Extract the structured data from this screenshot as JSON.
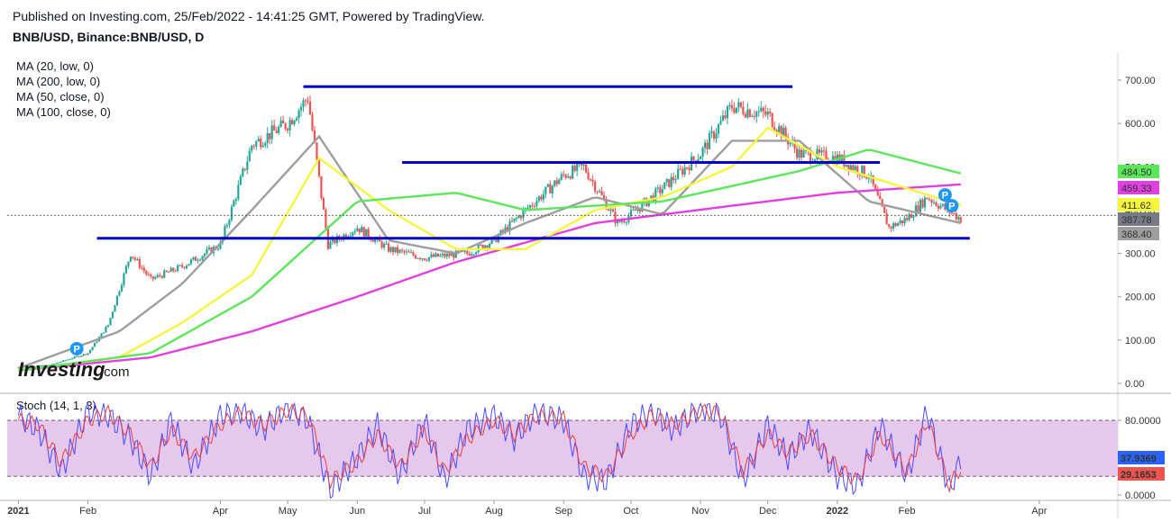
{
  "header": {
    "published": "Published on Investing.com, 25/Feb/2022 - 14:41:25 GMT, Powered by TradingView.",
    "symbol": "BNB/USD, Binance:BNB/USD, D"
  },
  "indicators": {
    "ma": [
      "MA (20, low, 0)",
      "MA (200, low, 0)",
      "MA (50, close, 0)",
      "MA (100, close, 0)"
    ],
    "stoch_label": "Stoch (14, 1, 3)"
  },
  "logo": {
    "brand": "Investing",
    "suffix": ".com"
  },
  "colors": {
    "ma20": "#9e9e9e",
    "ma200": "#e040e0",
    "ma50": "#f5f53d",
    "ma100": "#5ce65c",
    "level": "#0000cc",
    "up": "#26a69a",
    "down": "#ef5350",
    "stoch_k": "#4a4aff",
    "stoch_d": "#ef3b3b",
    "stoch_band": "#e1bee7",
    "last_price": "#787b86",
    "stoch_k_badge": "#2962ff",
    "stoch_d_badge": "#ef5350",
    "p_marker": "#2196f3"
  },
  "chart_data": [
    {
      "type": "candlestick",
      "title": "BNB/USD, Binance:BNB/USD, D",
      "ylim": [
        0,
        750
      ],
      "y_ticks": [
        "0.00",
        "100.00",
        "200.00",
        "300.00",
        "400.00",
        "500.00",
        "600.00",
        "700.00"
      ],
      "x_ticks": [
        "2021",
        "Feb",
        "Apr",
        "May",
        "Jun",
        "Jul",
        "Aug",
        "Sep",
        "Oct",
        "Nov",
        "Dec",
        "2022",
        "Feb",
        "Apr"
      ],
      "x_tick_bold": [
        "2021",
        "2022"
      ],
      "price_series_approx": {
        "dates": [
          "2021-01-01",
          "2021-01-15",
          "2021-02-01",
          "2021-02-10",
          "2021-02-20",
          "2021-03-01",
          "2021-03-15",
          "2021-04-01",
          "2021-04-15",
          "2021-05-01",
          "2021-05-10",
          "2021-05-19",
          "2021-06-01",
          "2021-06-15",
          "2021-07-01",
          "2021-07-20",
          "2021-08-01",
          "2021-08-15",
          "2021-09-01",
          "2021-09-10",
          "2021-09-25",
          "2021-10-01",
          "2021-10-15",
          "2021-11-01",
          "2021-11-15",
          "2021-12-01",
          "2021-12-15",
          "2022-01-01",
          "2022-01-15",
          "2022-01-24",
          "2022-02-01",
          "2022-02-10",
          "2022-02-25"
        ],
        "close": [
          38,
          42,
          70,
          135,
          300,
          240,
          270,
          320,
          550,
          600,
          660,
          320,
          360,
          310,
          290,
          300,
          330,
          400,
          480,
          500,
          370,
          390,
          450,
          530,
          640,
          620,
          530,
          520,
          480,
          360,
          380,
          430,
          380
        ]
      },
      "moving_averages": [
        {
          "name": "MA (20, low, 0)",
          "dates": [
            "2021-01-01",
            "2021-02-15",
            "2021-03-15",
            "2021-04-15",
            "2021-05-15",
            "2021-06-15",
            "2021-07-15",
            "2021-08-15",
            "2021-09-15",
            "2021-10-15",
            "2021-11-15",
            "2021-12-15",
            "2022-01-15",
            "2022-02-25"
          ],
          "values": [
            35,
            120,
            230,
            400,
            570,
            330,
            300,
            370,
            430,
            390,
            560,
            560,
            420,
            370
          ]
        },
        {
          "name": "MA (200, low, 0)",
          "dates": [
            "2021-01-01",
            "2021-03-01",
            "2021-04-15",
            "2021-06-01",
            "2021-07-15",
            "2021-09-15",
            "2021-11-15",
            "2022-01-01",
            "2022-02-25"
          ],
          "values": [
            30,
            60,
            120,
            200,
            280,
            370,
            410,
            440,
            459.33
          ]
        },
        {
          "name": "MA (50, close, 0)",
          "dates": [
            "2021-01-01",
            "2021-02-15",
            "2021-03-15",
            "2021-04-15",
            "2021-05-15",
            "2021-06-15",
            "2021-07-15",
            "2021-08-15",
            "2021-09-15",
            "2021-10-15",
            "2021-11-15",
            "2021-12-01",
            "2022-01-01",
            "2022-02-25"
          ],
          "values": [
            30,
            60,
            140,
            250,
            520,
            400,
            310,
            310,
            400,
            430,
            500,
            590,
            500,
            411.62
          ]
        },
        {
          "name": "MA (100, close, 0)",
          "dates": [
            "2021-01-01",
            "2021-03-01",
            "2021-04-15",
            "2021-06-01",
            "2021-07-15",
            "2021-08-15",
            "2021-10-15",
            "2021-12-15",
            "2022-01-15",
            "2022-02-25"
          ],
          "values": [
            30,
            70,
            200,
            420,
            440,
            400,
            420,
            490,
            540,
            484.5
          ]
        }
      ],
      "horizontal_levels": [
        {
          "value": 685,
          "from": "2021-05-08",
          "to": "2021-12-12"
        },
        {
          "value": 510,
          "from": "2021-06-21",
          "to": "2022-01-20"
        },
        {
          "value": 335,
          "from": "2021-02-05",
          "to": "2022-03-01"
        }
      ],
      "price_labels": [
        {
          "value": 484.5,
          "text": "484.50",
          "color": "#5ce65c",
          "text_color": "#000000"
        },
        {
          "value": 459.33,
          "text": "459.33",
          "color": "#e040e0",
          "text_color": "#000000"
        },
        {
          "value": 411.62,
          "text": "411.62",
          "color": "#f5f53d",
          "text_color": "#000000"
        },
        {
          "value": 387.78,
          "text": "387.78",
          "color": "#787b86",
          "text_color": "#ffffff"
        },
        {
          "value": 368.4,
          "text": "368.40",
          "color": "#9e9e9e",
          "text_color": "#ffffff"
        }
      ],
      "last_price": 387.78,
      "markers": [
        {
          "date": "2021-01-27",
          "value": 80,
          "label": "P"
        },
        {
          "date": "2022-02-18",
          "value": 435,
          "label": "P"
        },
        {
          "date": "2022-02-21",
          "value": 410,
          "label": "P"
        }
      ]
    },
    {
      "type": "line",
      "title": "Stoch (14, 1, 3)",
      "ylim": [
        -5,
        100
      ],
      "y_ticks": [
        "0.0000",
        "80.0000"
      ],
      "bands": [
        20,
        80
      ],
      "series": [
        {
          "name": "%K",
          "dates": [
            "2021-01-01",
            "2021-01-10",
            "2021-01-20",
            "2021-02-01",
            "2021-02-10",
            "2021-02-20",
            "2021-03-01",
            "2021-03-10",
            "2021-03-20",
            "2021-04-01",
            "2021-04-10",
            "2021-04-20",
            "2021-05-01",
            "2021-05-10",
            "2021-05-20",
            "2021-06-01",
            "2021-06-10",
            "2021-06-20",
            "2021-07-01",
            "2021-07-10",
            "2021-07-20",
            "2021-08-01",
            "2021-08-10",
            "2021-08-20",
            "2021-09-01",
            "2021-09-10",
            "2021-09-20",
            "2021-10-01",
            "2021-10-10",
            "2021-10-20",
            "2021-11-01",
            "2021-11-10",
            "2021-11-20",
            "2021-12-01",
            "2021-12-10",
            "2021-12-20",
            "2022-01-01",
            "2022-01-10",
            "2022-01-20",
            "2022-02-01",
            "2022-02-10",
            "2022-02-20",
            "2022-02-25"
          ],
          "values": [
            85,
            70,
            25,
            90,
            85,
            60,
            20,
            80,
            30,
            85,
            90,
            70,
            95,
            80,
            5,
            40,
            75,
            20,
            80,
            15,
            70,
            85,
            60,
            90,
            80,
            20,
            15,
            75,
            90,
            70,
            95,
            85,
            15,
            75,
            40,
            70,
            20,
            10,
            75,
            20,
            90,
            5,
            38
          ]
        },
        {
          "name": "%D",
          "dates": [
            "2021-01-01",
            "2021-01-10",
            "2021-01-20",
            "2021-02-01",
            "2021-02-10",
            "2021-02-20",
            "2021-03-01",
            "2021-03-10",
            "2021-03-20",
            "2021-04-01",
            "2021-04-10",
            "2021-04-20",
            "2021-05-01",
            "2021-05-10",
            "2021-05-20",
            "2021-06-01",
            "2021-06-10",
            "2021-06-20",
            "2021-07-01",
            "2021-07-10",
            "2021-07-20",
            "2021-08-01",
            "2021-08-10",
            "2021-08-20",
            "2021-09-01",
            "2021-09-10",
            "2021-09-20",
            "2021-10-01",
            "2021-10-10",
            "2021-10-20",
            "2021-11-01",
            "2021-11-10",
            "2021-11-20",
            "2021-12-01",
            "2021-12-10",
            "2021-12-20",
            "2022-01-01",
            "2022-01-10",
            "2022-01-20",
            "2022-02-01",
            "2022-02-10",
            "2022-02-20",
            "2022-02-25"
          ],
          "values": [
            80,
            75,
            35,
            80,
            88,
            65,
            30,
            70,
            40,
            75,
            88,
            75,
            90,
            85,
            15,
            35,
            65,
            30,
            70,
            25,
            60,
            80,
            65,
            85,
            82,
            30,
            20,
            65,
            85,
            75,
            90,
            88,
            25,
            65,
            45,
            65,
            30,
            15,
            65,
            25,
            80,
            10,
            29
          ]
        }
      ],
      "badges": [
        {
          "value": 37.9369,
          "text": "37.9369",
          "color": "#2962ff"
        },
        {
          "value": 29.1653,
          "text": "29.1653",
          "color": "#ef5350"
        }
      ]
    }
  ]
}
